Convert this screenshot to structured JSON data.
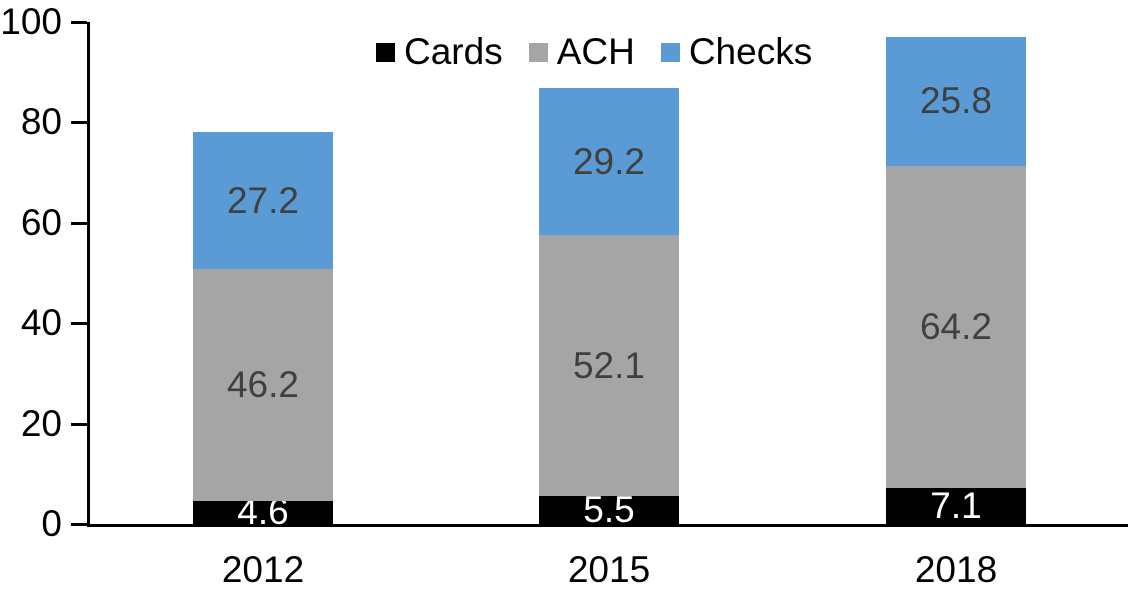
{
  "chart_data": {
    "type": "bar",
    "stacked": true,
    "title": "",
    "xlabel": "",
    "ylabel": "",
    "categories": [
      "2012",
      "2015",
      "2018"
    ],
    "series": [
      {
        "name": "Cards",
        "color": "#000000",
        "label_color": "#ffffff",
        "values": [
          4.6,
          5.5,
          7.1
        ]
      },
      {
        "name": "ACH",
        "color": "#a5a5a5",
        "label_color": "#404040",
        "values": [
          46.2,
          52.1,
          64.2
        ]
      },
      {
        "name": "Checks",
        "color": "#5b9bd5",
        "label_color": "#404040",
        "values": [
          27.2,
          29.2,
          25.8
        ]
      }
    ],
    "totals": [
      78.0,
      86.8,
      97.1
    ],
    "ylim": [
      0,
      100
    ],
    "yticks": [
      0,
      20,
      40,
      60,
      80,
      100
    ],
    "grid": false,
    "legend_position": "top-center",
    "data_labels": true
  },
  "colors": {
    "background": "#ffffff",
    "axis": "#000000",
    "tick_label": "#000000",
    "cards": "#000000",
    "ach": "#a5a5a5",
    "checks": "#5b9bd5",
    "value_label_dark": "#404040",
    "value_label_light": "#ffffff"
  }
}
